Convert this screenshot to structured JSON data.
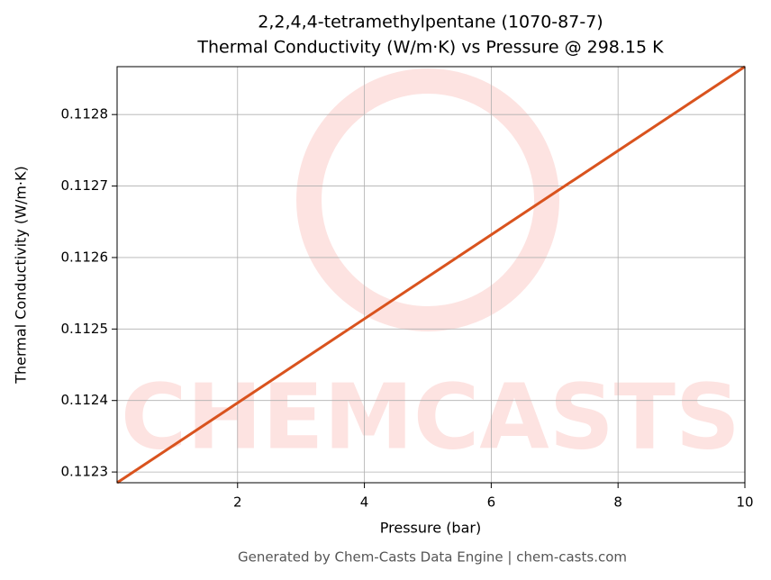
{
  "chart_data": {
    "type": "line",
    "title": "2,2,4,4-tetramethylpentane (1070-87-7)",
    "subtitle": "Thermal Conductivity (W/m·K) vs Pressure @ 298.15 K",
    "x_label": "Pressure (bar)",
    "y_label": "Thermal Conductivity (W/m·K)",
    "watermark": "CHEMCASTS",
    "footer": "Generated by Chem-Casts Data Engine | chem-casts.com",
    "x": [
      0.1,
      10
    ],
    "series": [
      {
        "name": "Thermal Conductivity",
        "color": "#d9531e",
        "values": [
          0.112285,
          0.112867
        ]
      }
    ],
    "xlim": [
      0.1,
      10
    ],
    "xticks": [
      2,
      4,
      6,
      8,
      10
    ],
    "ylim": [
      0.112285,
      0.112867
    ],
    "yticks": [
      0.1123,
      0.1124,
      0.1125,
      0.1126,
      0.1127,
      0.1128
    ],
    "grid": true
  }
}
